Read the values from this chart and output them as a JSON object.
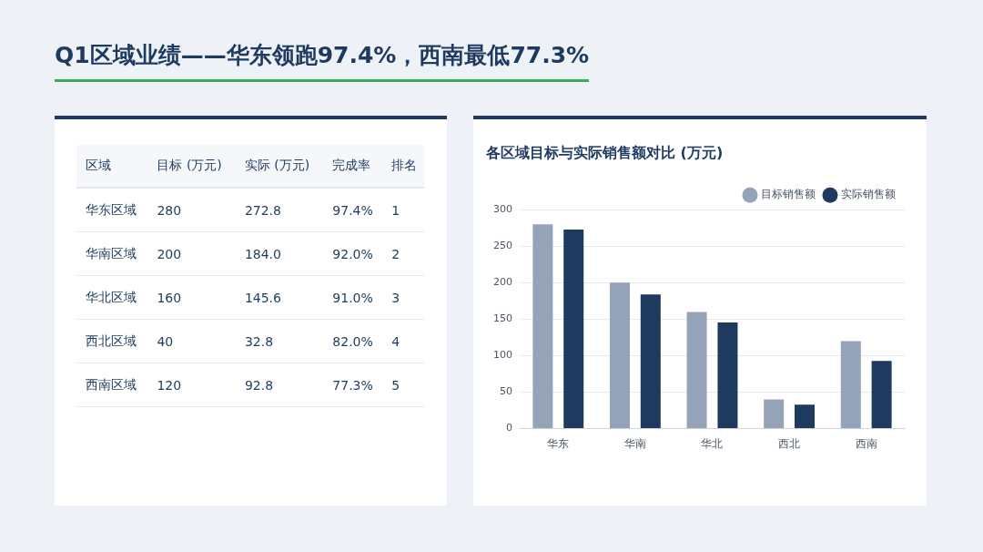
{
  "chart_data": [
    {
      "type": "heatmap",
      "title": "Q1区域业绩——华东领跑97.4%，西南最低77.3%",
      "ylabel": "区域",
      "categories": [
        "目标 (万元)",
        "实际 (万元)",
        "完成率",
        "排名"
      ],
      "y_categories": [
        "华东区域",
        "华南区域",
        "华北区域",
        "西北区域",
        "西南区域"
      ],
      "cells": [
        [
          280,
          272.8,
          97.4,
          1
        ],
        [
          200,
          184.0,
          92.0,
          2
        ],
        [
          160,
          145.6,
          91.0,
          3
        ],
        [
          40,
          32.8,
          82.0,
          4
        ],
        [
          120,
          92.8,
          77.3,
          5
        ]
      ],
      "cell_labels": [
        [
          "280",
          "272.8",
          "97.4%",
          "1"
        ],
        [
          "200",
          "184.0",
          "92.0%",
          "2"
        ],
        [
          "160",
          "145.6",
          "91.0%",
          "3"
        ],
        [
          "40",
          "32.8",
          "82.0%",
          "4"
        ],
        [
          "120",
          "92.8",
          "77.3%",
          "5"
        ]
      ]
    },
    {
      "type": "bar",
      "title": "各区域目标与实际销售额对比 (万元)",
      "categories": [
        "华东",
        "华南",
        "华北",
        "西北",
        "西南"
      ],
      "series": [
        {
          "name": "目标销售额",
          "color": "#94a3b8",
          "values": [
            280,
            200,
            160,
            40,
            120
          ]
        },
        {
          "name": "实际销售额",
          "color": "#1e3a5f",
          "values": [
            272.8,
            184,
            145.6,
            32.8,
            92.8
          ]
        }
      ],
      "ylim": [
        0,
        300
      ],
      "yticks": [
        0,
        50,
        100,
        150,
        200,
        250,
        300
      ],
      "grid": "y",
      "legend": "top right"
    }
  ]
}
